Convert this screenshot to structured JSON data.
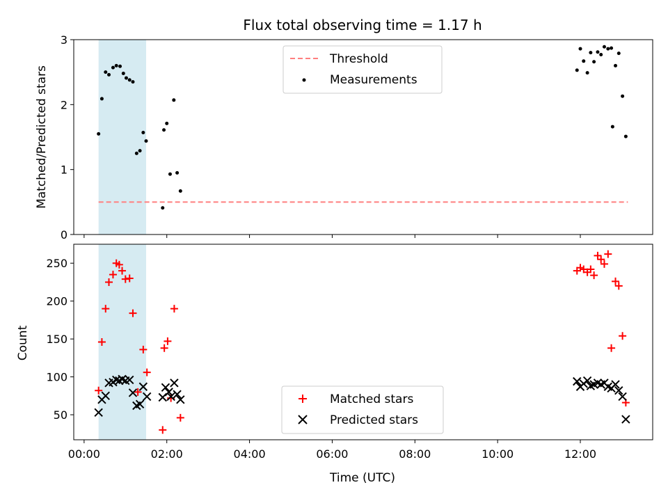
{
  "chart_data": [
    {
      "type": "scatter",
      "title": "Flux total observing time = 1.17 h",
      "xlabel": "",
      "ylabel": "Matched/Predicted stars",
      "ylim": [
        0,
        3
      ],
      "xlim_hours": [
        -0.25,
        13.75
      ],
      "yticks": [
        "0",
        "1",
        "2",
        "3"
      ],
      "shaded_interval_hours": [
        0.35,
        1.5
      ],
      "shaded_color": "#add8e6",
      "threshold": {
        "name": "Threshold",
        "value": 0.5,
        "x_range_hours": [
          0.35,
          13.15
        ],
        "color": "#ff7f7f"
      },
      "legend": {
        "placement": "upper-center",
        "entries": [
          "Threshold",
          "Measurements"
        ]
      },
      "series": [
        {
          "name": "Measurements",
          "color": "#000000",
          "marker": "dot",
          "x_hours": [
            0.35,
            0.43,
            0.52,
            0.6,
            0.7,
            0.78,
            0.87,
            0.95,
            1.02,
            1.1,
            1.18,
            1.27,
            1.35,
            1.43,
            1.5,
            1.9,
            1.93,
            2.0,
            2.08,
            2.17,
            2.25,
            2.33,
            11.92,
            12.0,
            12.08,
            12.17,
            12.25,
            12.33,
            12.42,
            12.5,
            12.58,
            12.67,
            12.75,
            12.78,
            12.85,
            12.93,
            13.02,
            13.1
          ],
          "y": [
            1.55,
            2.09,
            2.5,
            2.46,
            2.57,
            2.6,
            2.59,
            2.48,
            2.41,
            2.38,
            2.35,
            1.25,
            1.29,
            1.57,
            1.44,
            0.41,
            1.61,
            1.71,
            0.93,
            2.07,
            0.95,
            0.67,
            2.53,
            2.86,
            2.67,
            2.49,
            2.8,
            2.66,
            2.81,
            2.77,
            2.89,
            2.86,
            2.87,
            1.66,
            2.6,
            2.79,
            2.13,
            1.51
          ]
        }
      ]
    },
    {
      "type": "scatter",
      "title": "",
      "xlabel": "Time (UTC)",
      "ylabel": "Count",
      "ylim": [
        17,
        275
      ],
      "xlim_hours": [
        -0.25,
        13.75
      ],
      "yticks": [
        "50",
        "100",
        "150",
        "200",
        "250"
      ],
      "xticks": [
        "00:00",
        "02:00",
        "04:00",
        "06:00",
        "08:00",
        "10:00",
        "12:00"
      ],
      "shaded_interval_hours": [
        0.35,
        1.5
      ],
      "shaded_color": "#add8e6",
      "legend": {
        "placement": "lower-center",
        "entries": [
          "Matched stars",
          "Predicted stars"
        ]
      },
      "series": [
        {
          "name": "Matched stars",
          "color": "#ff0000",
          "marker": "plus",
          "x_hours": [
            0.35,
            0.43,
            0.52,
            0.6,
            0.7,
            0.78,
            0.85,
            0.92,
            1.0,
            1.1,
            1.18,
            1.3,
            1.43,
            1.52,
            1.9,
            1.94,
            2.02,
            2.1,
            2.18,
            2.33,
            11.92,
            12.0,
            12.08,
            12.17,
            12.25,
            12.33,
            12.42,
            12.5,
            12.58,
            12.67,
            12.75,
            12.85,
            12.93,
            13.02,
            13.1
          ],
          "y": [
            82,
            146,
            190,
            225,
            235,
            250,
            248,
            240,
            229,
            230,
            184,
            80,
            136,
            106,
            30,
            138,
            147,
            72,
            190,
            46,
            240,
            244,
            242,
            238,
            242,
            234,
            260,
            255,
            249,
            262,
            138,
            226,
            220,
            154,
            66
          ]
        },
        {
          "name": "Predicted stars",
          "color": "#000000",
          "marker": "x",
          "x_hours": [
            0.35,
            0.43,
            0.52,
            0.6,
            0.7,
            0.78,
            0.85,
            0.92,
            1.0,
            1.1,
            1.18,
            1.27,
            1.35,
            1.43,
            1.52,
            1.9,
            1.97,
            2.05,
            2.1,
            2.18,
            2.25,
            2.33,
            11.92,
            12.0,
            12.08,
            12.17,
            12.25,
            12.33,
            12.42,
            12.5,
            12.58,
            12.67,
            12.75,
            12.85,
            12.93,
            13.02,
            13.1
          ],
          "y": [
            53,
            70,
            75,
            92,
            93,
            96,
            95,
            97,
            95,
            96,
            79,
            62,
            64,
            87,
            74,
            73,
            86,
            80,
            74,
            92,
            77,
            70,
            94,
            87,
            91,
            95,
            88,
            90,
            92,
            90,
            92,
            87,
            85,
            90,
            82,
            74,
            44
          ]
        }
      ]
    }
  ]
}
